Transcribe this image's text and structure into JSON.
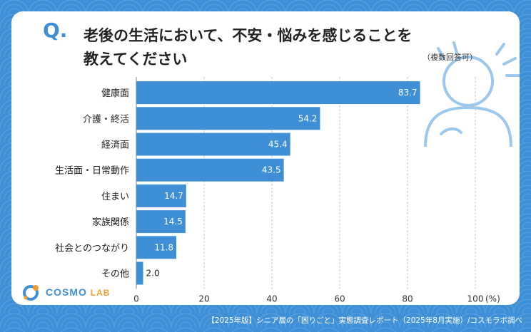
{
  "question": {
    "mark": "Q.",
    "line1": "老後の生活において、不安・悩みを感じることを",
    "line2": "教えてください",
    "note": "（複数回答可）"
  },
  "chart_data": {
    "type": "bar",
    "orientation": "horizontal",
    "categories": [
      "健康面",
      "介護・終活",
      "経済面",
      "生活面・日常動作",
      "住まい",
      "家族関係",
      "社会とのつながり",
      "その他"
    ],
    "values": [
      83.7,
      54.2,
      45.4,
      43.5,
      14.7,
      14.5,
      11.8,
      2.0
    ],
    "value_labels": [
      "83.7",
      "54.2",
      "45.4",
      "43.5",
      "14.7",
      "14.5",
      "11.8",
      "2.0"
    ],
    "xlim": [
      0,
      100
    ],
    "x_ticks": [
      0,
      20,
      40,
      60,
      80,
      100
    ],
    "x_tick_labels": [
      "0",
      "20",
      "40",
      "60",
      "80",
      "100"
    ],
    "x_unit": "(%)",
    "grid": true,
    "bar_color": "#3f8fd6"
  },
  "logo": {
    "name": "COSMO",
    "suffix": "LAB"
  },
  "footer": "【2025年版】シニア層の「困りごと」実態調査レポート（2025年8月実施）/コスモラボ調べ",
  "colors": {
    "background": "#3f8fd6",
    "bar": "#3f8fd6",
    "accent": "#f0a030"
  }
}
